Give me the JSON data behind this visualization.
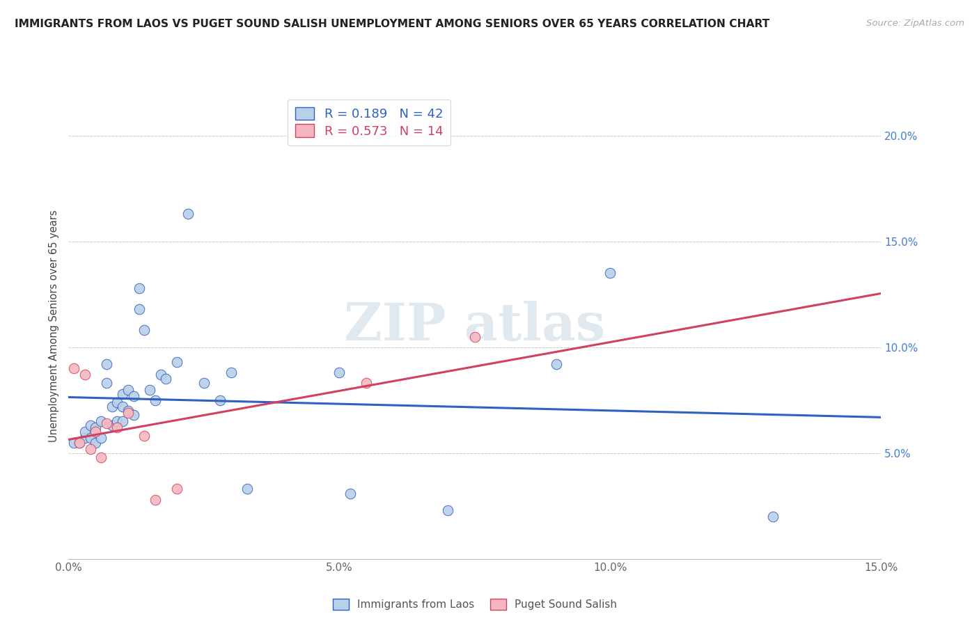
{
  "title": "IMMIGRANTS FROM LAOS VS PUGET SOUND SALISH UNEMPLOYMENT AMONG SENIORS OVER 65 YEARS CORRELATION CHART",
  "source": "Source: ZipAtlas.com",
  "ylabel": "Unemployment Among Seniors over 65 years",
  "xlim": [
    0.0,
    0.15
  ],
  "ylim": [
    0.0,
    0.22
  ],
  "xticks": [
    0.0,
    0.05,
    0.1,
    0.15
  ],
  "yticks": [
    0.05,
    0.1,
    0.15,
    0.2
  ],
  "xtick_labels": [
    "0.0%",
    "5.0%",
    "10.0%",
    "15.0%"
  ],
  "ytick_labels": [
    "5.0%",
    "10.0%",
    "15.0%",
    "20.0%"
  ],
  "blue_R": 0.189,
  "blue_N": 42,
  "pink_R": 0.573,
  "pink_N": 14,
  "blue_color": "#b8d0e8",
  "pink_color": "#f5b8c0",
  "blue_line_color": "#3060c0",
  "pink_line_color": "#d04060",
  "axis_label_color": "#4080d0",
  "blue_scatter_x": [
    0.001,
    0.002,
    0.003,
    0.003,
    0.004,
    0.004,
    0.005,
    0.005,
    0.006,
    0.006,
    0.007,
    0.007,
    0.008,
    0.008,
    0.009,
    0.009,
    0.01,
    0.01,
    0.01,
    0.011,
    0.011,
    0.012,
    0.012,
    0.013,
    0.013,
    0.014,
    0.015,
    0.016,
    0.017,
    0.018,
    0.02,
    0.022,
    0.025,
    0.028,
    0.03,
    0.033,
    0.05,
    0.052,
    0.07,
    0.09,
    0.1,
    0.13
  ],
  "blue_scatter_y": [
    0.055,
    0.055,
    0.057,
    0.06,
    0.057,
    0.063,
    0.055,
    0.062,
    0.057,
    0.065,
    0.083,
    0.092,
    0.063,
    0.072,
    0.065,
    0.074,
    0.065,
    0.072,
    0.078,
    0.07,
    0.08,
    0.068,
    0.077,
    0.118,
    0.128,
    0.108,
    0.08,
    0.075,
    0.087,
    0.085,
    0.093,
    0.163,
    0.083,
    0.075,
    0.088,
    0.033,
    0.088,
    0.031,
    0.023,
    0.092,
    0.135,
    0.02
  ],
  "pink_scatter_x": [
    0.001,
    0.002,
    0.003,
    0.004,
    0.005,
    0.006,
    0.007,
    0.009,
    0.011,
    0.014,
    0.016,
    0.02,
    0.055,
    0.075
  ],
  "pink_scatter_y": [
    0.09,
    0.055,
    0.087,
    0.052,
    0.06,
    0.048,
    0.064,
    0.062,
    0.069,
    0.058,
    0.028,
    0.033,
    0.083,
    0.105
  ]
}
